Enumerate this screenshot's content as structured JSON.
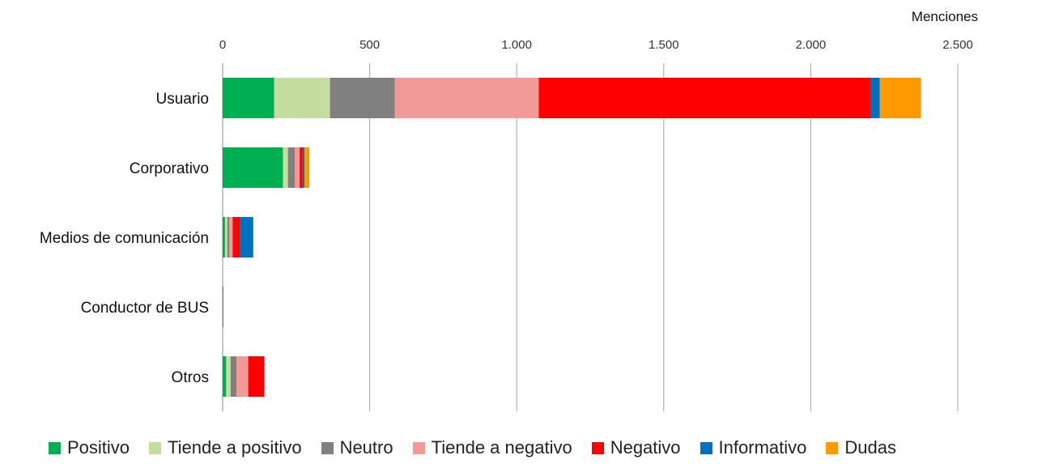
{
  "chart_data": {
    "type": "bar",
    "orientation": "horizontal",
    "stacked": true,
    "xlabel": "Menciones",
    "xlim": [
      0,
      2500
    ],
    "xticks": [
      0,
      500,
      1000,
      1500,
      2000,
      2500
    ],
    "xtick_labels": [
      "0",
      "500",
      "1.000",
      "1.500",
      "2.000",
      "2.500"
    ],
    "categories": [
      "Usuario",
      "Corporativo",
      "Medios de comunicación",
      "Conductor de BUS",
      "Otros"
    ],
    "series": [
      {
        "name": "Positivo",
        "color": "#00B050",
        "values": [
          175,
          205,
          8,
          0,
          12
        ]
      },
      {
        "name": "Tiende a positivo",
        "color": "#C3DE9E",
        "values": [
          190,
          17,
          8,
          0,
          15
        ]
      },
      {
        "name": "Neutro",
        "color": "#808080",
        "values": [
          220,
          23,
          6,
          3,
          20
        ]
      },
      {
        "name": "Tiende a negativo",
        "color": "#F19B96",
        "values": [
          490,
          17,
          12,
          0,
          40
        ]
      },
      {
        "name": "Negativo",
        "color": "#FF0000",
        "values": [
          1130,
          8,
          25,
          0,
          55
        ]
      },
      {
        "name": "Informativo",
        "color": "#0070C0",
        "values": [
          30,
          8,
          45,
          0,
          0
        ]
      },
      {
        "name": "Dudas",
        "color": "#FF9900",
        "values": [
          140,
          17,
          0,
          0,
          0
        ]
      }
    ],
    "grid": true,
    "legend_position": "bottom"
  }
}
